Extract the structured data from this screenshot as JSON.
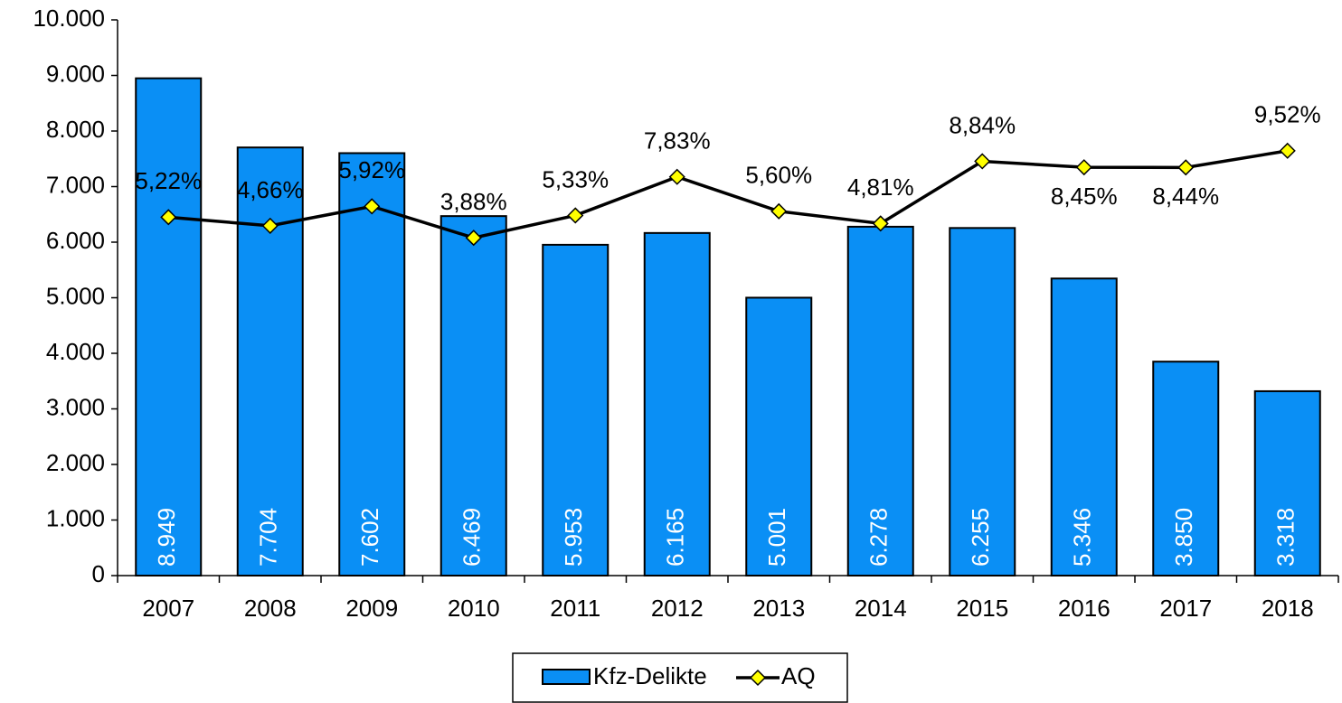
{
  "chart_data": {
    "type": "bar",
    "categories": [
      "2007",
      "2008",
      "2009",
      "2010",
      "2011",
      "2012",
      "2013",
      "2014",
      "2015",
      "2016",
      "2017",
      "2018"
    ],
    "series": [
      {
        "name": "Kfz-Delikte",
        "type": "bar",
        "color": "#0a8ff5",
        "values": [
          8949,
          7704,
          7602,
          6469,
          5953,
          6165,
          5001,
          6278,
          6255,
          5346,
          3850,
          3318
        ],
        "value_labels": [
          "8.949",
          "7.704",
          "7.602",
          "6.469",
          "5.953",
          "6.165",
          "5.001",
          "6.278",
          "6.255",
          "5.346",
          "3.850",
          "3.318"
        ]
      },
      {
        "name": "AQ",
        "type": "line",
        "axis": "y2",
        "color": "#000000",
        "marker_color": "#ffff00",
        "values": [
          5.22,
          4.66,
          5.92,
          3.88,
          5.33,
          7.83,
          5.6,
          4.81,
          8.84,
          8.45,
          8.44,
          9.52
        ],
        "value_labels": [
          "5,22%",
          "4,66%",
          "5,92%",
          "3,88%",
          "5,33%",
          "7,83%",
          "5,60%",
          "4,81%",
          "8,84%",
          "8,45%",
          "8,44%",
          "9,52%"
        ]
      }
    ],
    "ylim": [
      0,
      10000
    ],
    "yticks": [
      0,
      {
        "value": 1000,
        "label": "1.000"
      },
      {
        "value": 2000,
        "label": "2.000"
      },
      {
        "value": 3000,
        "label": "3.000"
      },
      {
        "value": 4000,
        "label": "4.000"
      },
      {
        "value": 5000,
        "label": "5.000"
      },
      {
        "value": 6000,
        "label": "6.000"
      },
      {
        "value": 7000,
        "label": "7.000"
      },
      {
        "value": 8000,
        "label": "8.000"
      },
      {
        "value": 9000,
        "label": "9.000"
      },
      {
        "value": 10000,
        "label": "10.000"
      }
    ],
    "y2lim": [
      -18,
      18
    ],
    "legend": "bottom"
  }
}
